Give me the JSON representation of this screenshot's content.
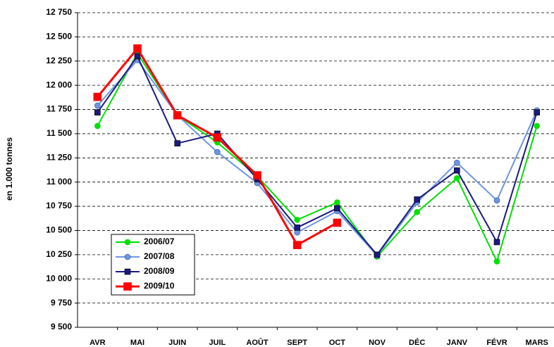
{
  "chart_data": {
    "type": "line",
    "y_label": "en 1.000 tonnes",
    "categories": [
      "AVR",
      "MAI",
      "JUIN",
      "JUIL",
      "AOÛT",
      "SEPT",
      "OCT",
      "NOV",
      "DÉC",
      "JANV",
      "FÉVR",
      "MARS"
    ],
    "ylim": [
      9500,
      12750
    ],
    "yticks": [
      {
        "value": 9500,
        "label": "9 500"
      },
      {
        "value": 9750,
        "label": "9 750"
      },
      {
        "value": 10000,
        "label": "10 000"
      },
      {
        "value": 10250,
        "label": "10 250"
      },
      {
        "value": 10500,
        "label": "10 500"
      },
      {
        "value": 10750,
        "label": "10 750"
      },
      {
        "value": 11000,
        "label": "11 000"
      },
      {
        "value": 11250,
        "label": "11 250"
      },
      {
        "value": 11500,
        "label": "11 500"
      },
      {
        "value": 11750,
        "label": "11 750"
      },
      {
        "value": 12000,
        "label": "12 000"
      },
      {
        "value": 12250,
        "label": "12 250"
      },
      {
        "value": 12500,
        "label": "12 500"
      },
      {
        "value": 12750,
        "label": "12 750"
      }
    ],
    "grid": true,
    "legend": "lower-left",
    "series": [
      {
        "name": "2006/07",
        "color": "#00e000",
        "marker": "circle",
        "values": [
          11580,
          12330,
          11690,
          11410,
          11060,
          10610,
          10790,
          10230,
          10690,
          11040,
          10180,
          11580
        ]
      },
      {
        "name": "2007/08",
        "color": "#6f95e0",
        "marker": "circle",
        "values": [
          11790,
          12260,
          11690,
          11310,
          10990,
          10480,
          10700,
          10240,
          10790,
          11200,
          10810,
          11740
        ]
      },
      {
        "name": "2008/09",
        "color": "#1a1a80",
        "marker": "square",
        "values": [
          11720,
          12300,
          11400,
          11500,
          11030,
          10530,
          10730,
          10250,
          10820,
          11120,
          10380,
          11720
        ]
      },
      {
        "name": "2009/10",
        "color": "#ff0000",
        "marker": "square",
        "values": [
          11880,
          12380,
          11690,
          11460,
          11070,
          10350,
          10580,
          null,
          null,
          null,
          null,
          null
        ]
      }
    ]
  }
}
